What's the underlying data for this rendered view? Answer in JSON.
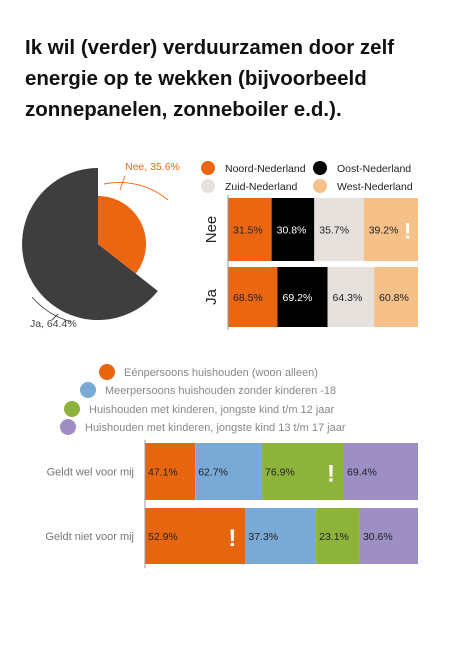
{
  "title": "Ik wil (verder) verduurzamen door zelf energie op te wekken (bijvoorbeeld zonnepanelen, zonneboiler e.d.).",
  "chart_data": [
    {
      "type": "pie",
      "slices": [
        {
          "label": "Nee, 35.6%",
          "value": 35.6,
          "color": "#ec6611"
        },
        {
          "label": "Ja, 64.4%",
          "value": 64.4,
          "color": "#3e3e3e"
        }
      ]
    },
    {
      "type": "bar",
      "stacked": true,
      "orientation": "horizontal",
      "legend": [
        "Noord-Nederland",
        "Oost-Nederland",
        "Zuid-Nederland",
        "West-Nederland"
      ],
      "colors": [
        "#ec6611",
        "#000000",
        "#e6e1dc",
        "#f6c089"
      ],
      "categories": [
        "Nee",
        "Ja"
      ],
      "series": [
        {
          "name": "Noord-Nederland",
          "values": [
            31.5,
            68.5
          ]
        },
        {
          "name": "Oost-Nederland",
          "values": [
            30.8,
            69.2
          ]
        },
        {
          "name": "Zuid-Nederland",
          "values": [
            35.7,
            64.3
          ]
        },
        {
          "name": "West-Nederland",
          "values": [
            39.2,
            60.8
          ]
        }
      ],
      "value_labels": [
        [
          "31.5%",
          "30.8%",
          "35.7%",
          "39.2%"
        ],
        [
          "68.5%",
          "69.2%",
          "64.3%",
          "60.8%"
        ]
      ],
      "flag": {
        "text": "!",
        "row": 0,
        "series": 3
      }
    },
    {
      "type": "bar",
      "stacked": true,
      "orientation": "horizontal",
      "legend": [
        "Eénpersoons huishouden (woon alleen)",
        "Meerpersoons huishouden zonder kinderen -18",
        "Huishouden met kinderen, jongste kind t/m 12 jaar",
        "Huishouden met kinderen, jongste kind 13 t/m 17 jaar"
      ],
      "colors": [
        "#e8650f",
        "#79a9d5",
        "#8db33a",
        "#9d8ec4"
      ],
      "categories": [
        "Geldt wel voor mij",
        "Geldt niet voor mij"
      ],
      "series": [
        {
          "name": "Eénpersoons huishouden (woon alleen)",
          "values": [
            47.1,
            52.9
          ]
        },
        {
          "name": "Meerpersoons huishouden zonder kinderen -18",
          "values": [
            62.7,
            37.3
          ]
        },
        {
          "name": "Huishouden met kinderen, jongste kind t/m 12 jaar",
          "values": [
            76.9,
            23.1
          ]
        },
        {
          "name": "Huishouden met kinderen, jongste kind 13 t/m 17 jaar",
          "values": [
            69.4,
            30.6
          ]
        }
      ],
      "value_labels": [
        [
          "47.1%",
          "62.7%",
          "76.9%",
          "69.4%"
        ],
        [
          "52.9%",
          "37.3%",
          "23.1%",
          "30.6%"
        ]
      ],
      "flags": [
        {
          "text": "!",
          "row": 0,
          "series": 2
        },
        {
          "text": "!",
          "row": 1,
          "series": 0
        }
      ]
    }
  ]
}
